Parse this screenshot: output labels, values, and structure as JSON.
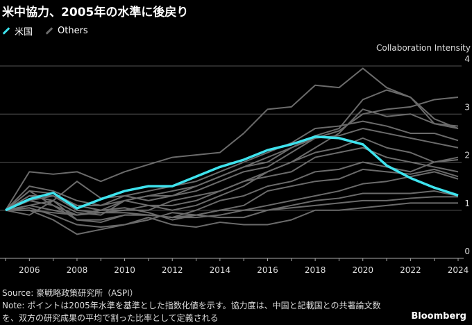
{
  "title": "米中協力、2005年の水準に後戻り",
  "legend": [
    {
      "label": "米国",
      "color": "#3ee3ee"
    },
    {
      "label": "Others",
      "color": "#6b6b6b"
    }
  ],
  "footer": {
    "source": "Source: 豪戦略政策研究所（ASPI）",
    "note1": "Note: ポイントは2005年水準を基準とした指数化値を示す。協力度は、中国と記載国との共著論文数",
    "note2": "を、双方の研究成果の平均で割った比率として定義される"
  },
  "brand": "Bloomberg",
  "chart_data": {
    "type": "line",
    "title": "米中協力、2005年の水準に後戻り",
    "ylabel": "Collaboration Intensity",
    "ylim": [
      0,
      4
    ],
    "yticks": [
      "0",
      "1",
      "2",
      "3",
      "4"
    ],
    "xlim": [
      2005,
      2024
    ],
    "xticks": [
      "2006",
      "2008",
      "2010",
      "2012",
      "2014",
      "2016",
      "2018",
      "2020",
      "2022",
      "2024"
    ],
    "x": [
      2005,
      2006,
      2007,
      2008,
      2009,
      2010,
      2011,
      2012,
      2013,
      2014,
      2015,
      2016,
      2017,
      2018,
      2019,
      2020,
      2021,
      2022,
      2023,
      2024
    ],
    "series": [
      {
        "name": "米国",
        "highlight": true,
        "values": [
          1.0,
          1.23,
          1.36,
          1.04,
          1.23,
          1.4,
          1.5,
          1.5,
          1.7,
          1.9,
          2.05,
          2.25,
          2.37,
          2.53,
          2.5,
          2.37,
          1.93,
          1.67,
          1.47,
          1.31
        ]
      },
      {
        "name": "Others",
        "values": [
          1.0,
          1.8,
          1.75,
          1.8,
          1.6,
          1.8,
          1.95,
          2.1,
          2.15,
          2.2,
          2.6,
          3.1,
          3.15,
          3.6,
          3.55,
          3.95,
          3.55,
          3.35,
          2.8,
          2.7
        ]
      },
      {
        "name": "Others",
        "values": [
          1.0,
          1.3,
          1.3,
          1.1,
          1.0,
          1.2,
          1.3,
          1.3,
          1.4,
          1.6,
          1.8,
          1.9,
          2.2,
          2.5,
          2.65,
          3.0,
          3.1,
          3.15,
          3.3,
          3.35
        ]
      },
      {
        "name": "Others",
        "values": [
          1.0,
          1.4,
          1.35,
          1.1,
          1.1,
          1.2,
          1.3,
          1.4,
          1.5,
          1.7,
          1.9,
          2.0,
          2.3,
          2.55,
          2.7,
          3.3,
          3.5,
          3.35,
          2.9,
          2.7
        ]
      },
      {
        "name": "Others",
        "values": [
          1.0,
          1.2,
          1.1,
          0.9,
          1.0,
          1.0,
          1.1,
          1.1,
          1.2,
          1.4,
          1.6,
          1.8,
          2.0,
          2.3,
          2.6,
          3.1,
          2.95,
          3.0,
          2.8,
          2.75
        ]
      },
      {
        "name": "Others",
        "values": [
          1.0,
          1.5,
          1.4,
          1.2,
          1.1,
          1.3,
          1.4,
          1.5,
          1.6,
          1.8,
          2.0,
          2.2,
          2.4,
          2.7,
          2.75,
          2.85,
          2.75,
          2.6,
          2.6,
          2.45
        ]
      },
      {
        "name": "Others",
        "values": [
          1.0,
          1.3,
          1.2,
          1.6,
          1.25,
          1.3,
          1.2,
          1.3,
          1.5,
          1.7,
          1.9,
          2.1,
          2.3,
          2.5,
          2.55,
          2.7,
          2.6,
          2.5,
          2.4,
          2.3
        ]
      },
      {
        "name": "Others",
        "values": [
          1.0,
          1.1,
          1.2,
          0.95,
          0.9,
          1.2,
          1.1,
          1.0,
          1.1,
          1.3,
          1.5,
          1.8,
          2.0,
          2.2,
          2.3,
          2.5,
          2.3,
          2.2,
          2.0,
          2.05
        ]
      },
      {
        "name": "Others",
        "values": [
          1.0,
          1.2,
          1.3,
          1.0,
          0.95,
          1.0,
          1.0,
          1.2,
          1.3,
          1.4,
          1.6,
          1.7,
          1.8,
          2.1,
          2.2,
          2.3,
          2.1,
          2.0,
          1.9,
          1.8
        ]
      },
      {
        "name": "Others",
        "values": [
          1.0,
          1.4,
          1.1,
          0.8,
          0.8,
          0.9,
          0.9,
          0.85,
          1.0,
          1.2,
          1.3,
          1.5,
          1.6,
          1.8,
          1.85,
          2.0,
          1.9,
          1.8,
          2.0,
          2.1
        ]
      },
      {
        "name": "Others",
        "values": [
          1.0,
          0.9,
          1.2,
          0.8,
          0.75,
          0.9,
          0.9,
          0.85,
          0.9,
          1.0,
          1.1,
          1.4,
          1.5,
          1.6,
          1.65,
          1.85,
          1.8,
          1.75,
          1.85,
          1.7
        ]
      },
      {
        "name": "Others",
        "values": [
          1.0,
          1.1,
          1.0,
          0.9,
          1.0,
          1.05,
          0.95,
          0.8,
          0.9,
          1.0,
          1.0,
          1.1,
          1.2,
          1.3,
          1.4,
          1.55,
          1.6,
          1.7,
          1.8,
          1.65
        ]
      },
      {
        "name": "Others",
        "values": [
          1.0,
          1.0,
          0.8,
          0.5,
          0.6,
          0.7,
          0.8,
          0.95,
          0.9,
          0.85,
          0.85,
          1.0,
          1.1,
          1.2,
          1.25,
          1.35,
          1.35,
          1.35,
          1.4,
          1.3
        ]
      },
      {
        "name": "Others",
        "values": [
          1.0,
          1.0,
          0.95,
          0.9,
          0.95,
          0.95,
          0.9,
          0.85,
          0.85,
          0.9,
          1.0,
          1.0,
          1.05,
          1.1,
          1.15,
          1.2,
          1.2,
          1.25,
          1.28,
          1.28
        ]
      },
      {
        "name": "Others",
        "values": [
          1.0,
          1.05,
          0.9,
          0.7,
          0.65,
          0.7,
          0.85,
          0.7,
          0.65,
          0.75,
          0.7,
          0.7,
          0.8,
          1.0,
          1.0,
          1.05,
          1.1,
          1.15,
          1.15,
          1.15
        ]
      }
    ]
  }
}
